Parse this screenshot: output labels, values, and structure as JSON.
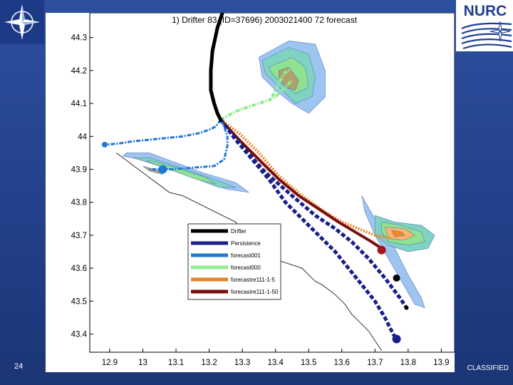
{
  "slide": {
    "number": "24",
    "classification": "CLASSIFIED",
    "nurc_logo_text": "NURC",
    "colors": {
      "background": "#23418a",
      "nurc_blue": "#1f3f8f"
    }
  },
  "chart_data": {
    "type": "line",
    "title": "1) Drifter 83 (ID=37696) 2003021400 72 forecast",
    "xlabel": "",
    "ylabel": "",
    "xlim": [
      12.84,
      13.94
    ],
    "ylim": [
      43.345,
      44.375
    ],
    "xticks": [
      "12.9",
      "13",
      "13.1",
      "13.2",
      "13.3",
      "13.4",
      "13.5",
      "13.6",
      "13.7",
      "13.8",
      "13.9"
    ],
    "yticks": [
      "44.3",
      "44.2",
      "44.1",
      "44",
      "43.9",
      "43.8",
      "43.7",
      "43.6",
      "43.5",
      "43.4"
    ],
    "grid": false,
    "legend_position": "center-right",
    "series": [
      {
        "name": "Drifter",
        "color": "#000000",
        "style": "solid",
        "width": 5,
        "x": [
          13.24,
          13.225,
          13.21,
          13.205,
          13.205,
          13.215,
          13.225,
          13.235
        ],
        "y": [
          44.375,
          44.33,
          44.26,
          44.2,
          44.14,
          44.1,
          44.07,
          44.05
        ]
      },
      {
        "name": "Persistence",
        "color": "#1a1f8a",
        "style": "dash",
        "width": 5,
        "x": [
          13.235,
          13.28,
          13.33,
          13.38,
          13.43,
          13.48,
          13.53,
          13.58,
          13.62,
          13.66,
          13.7,
          13.73,
          13.755,
          13.765
        ],
        "y": [
          44.05,
          43.99,
          43.93,
          43.87,
          43.8,
          43.75,
          43.7,
          43.65,
          43.6,
          43.55,
          43.5,
          43.45,
          43.4,
          43.385
        ]
      },
      {
        "name": "forecast001",
        "color": "#1f78d8",
        "style": "dashdot",
        "width": 3,
        "x": [
          13.235,
          13.22,
          13.2,
          13.17,
          13.12,
          13.07,
          13.02,
          12.97,
          12.925,
          12.885
        ],
        "y": [
          44.05,
          44.03,
          44.02,
          44.01,
          44.0,
          43.995,
          43.99,
          43.985,
          43.978,
          43.975
        ]
      },
      {
        "name": "forecast000",
        "color": "#90ee90",
        "style": "dashdot",
        "width": 4,
        "x": [
          13.235,
          13.26,
          13.29,
          13.32,
          13.35,
          13.38,
          13.4,
          13.42,
          13.45
        ],
        "y": [
          44.05,
          44.065,
          44.08,
          44.09,
          44.1,
          44.11,
          44.12,
          44.14,
          44.17
        ]
      },
      {
        "name": "forecastre111-1-5",
        "color": "#e8821e",
        "style": "dot",
        "width": 4,
        "x": [
          13.235,
          13.29,
          13.35,
          13.41,
          13.48,
          13.55,
          13.6,
          13.65,
          13.7,
          13.75
        ],
        "y": [
          44.05,
          44.01,
          43.95,
          43.88,
          43.82,
          43.77,
          43.74,
          43.72,
          43.7,
          43.69
        ]
      },
      {
        "name": "forecastre111-1-50",
        "color": "#7a0f0f",
        "style": "solid",
        "width": 4,
        "x": [
          13.235,
          13.29,
          13.35,
          13.41,
          13.47,
          13.53,
          13.59,
          13.64,
          13.69,
          13.72
        ],
        "y": [
          44.05,
          43.99,
          43.93,
          43.87,
          43.82,
          43.78,
          43.74,
          43.71,
          43.68,
          43.66
        ]
      },
      {
        "name": "",
        "color": "#1a1f8a",
        "style": "dash",
        "width": 5,
        "x": [
          13.235,
          13.3,
          13.37,
          13.45,
          13.52,
          13.58,
          13.63,
          13.68,
          13.73,
          13.775,
          13.795
        ],
        "y": [
          44.05,
          43.97,
          43.89,
          43.82,
          43.76,
          43.72,
          43.68,
          43.63,
          43.57,
          43.51,
          43.48
        ]
      },
      {
        "name": "",
        "color": "#1f78d8",
        "style": "dashdot",
        "width": 3,
        "x": [
          13.235,
          13.245,
          13.255,
          13.255,
          13.245,
          13.215,
          13.15,
          13.09,
          13.05,
          13.02
        ],
        "y": [
          44.05,
          44.03,
          44.0,
          43.97,
          43.93,
          43.91,
          43.905,
          43.9,
          43.9,
          43.9
        ]
      },
      {
        "name": "",
        "color": "#90ee90",
        "style": "dashdot",
        "width": 4,
        "x": [
          13.39,
          13.4,
          13.41,
          13.42,
          13.43,
          13.44,
          13.45
        ],
        "y": [
          44.12,
          44.14,
          44.16,
          44.18,
          44.195,
          44.2,
          44.205
        ]
      }
    ],
    "markers": [
      {
        "x": 12.885,
        "y": 43.975,
        "r": 4,
        "color": "#1f78d8",
        "edge": ""
      },
      {
        "x": 13.06,
        "y": 43.9,
        "r": 6,
        "color": "#1f78d8",
        "edge": ""
      },
      {
        "x": 13.72,
        "y": 43.655,
        "r": 6,
        "color": "#a3141c",
        "edge": ""
      },
      {
        "x": 13.765,
        "y": 43.385,
        "r": 6,
        "color": "#1a1f8a",
        "edge": ""
      },
      {
        "x": 13.765,
        "y": 43.57,
        "r": 5,
        "color": "#000000",
        "edge": ""
      },
      {
        "x": 13.795,
        "y": 43.48,
        "r": 3,
        "color": "#000000",
        "edge": ""
      },
      {
        "x": 13.235,
        "y": 44.05,
        "r": 3,
        "color": "#000000",
        "edge": ""
      }
    ],
    "contour_blobs": [
      {
        "fill": "#9ec5f0",
        "points": [
          [
            13.35,
            44.24
          ],
          [
            13.44,
            44.29
          ],
          [
            13.52,
            44.28
          ],
          [
            13.55,
            44.2
          ],
          [
            13.55,
            44.12
          ],
          [
            13.5,
            44.07
          ],
          [
            13.45,
            44.1
          ],
          [
            13.4,
            44.14
          ],
          [
            13.36,
            44.18
          ]
        ]
      },
      {
        "fill": "#7fd3c0",
        "points": [
          [
            13.36,
            44.23
          ],
          [
            13.44,
            44.27
          ],
          [
            13.5,
            44.25
          ],
          [
            13.52,
            44.18
          ],
          [
            13.51,
            44.12
          ],
          [
            13.46,
            44.1
          ],
          [
            13.41,
            44.15
          ],
          [
            13.37,
            44.19
          ]
        ]
      },
      {
        "fill": "#8fe28f",
        "points": [
          [
            13.38,
            44.21
          ],
          [
            13.45,
            44.24
          ],
          [
            13.49,
            44.21
          ],
          [
            13.5,
            44.15
          ],
          [
            13.46,
            44.13
          ],
          [
            13.42,
            44.16
          ],
          [
            13.39,
            44.19
          ]
        ]
      },
      {
        "fill": "#b2a06a",
        "points": [
          [
            13.41,
            44.2
          ],
          [
            13.44,
            44.21
          ],
          [
            13.47,
            44.17
          ],
          [
            13.46,
            44.14
          ],
          [
            13.43,
            44.15
          ],
          [
            13.41,
            44.18
          ]
        ]
      },
      {
        "fill": "#9ec5f0",
        "points": [
          [
            12.94,
            43.94
          ],
          [
            13.05,
            43.92
          ],
          [
            13.15,
            43.88
          ],
          [
            13.25,
            43.84
          ],
          [
            13.32,
            43.83
          ],
          [
            13.28,
            43.86
          ],
          [
            13.18,
            43.89
          ],
          [
            13.1,
            43.92
          ],
          [
            13.02,
            43.95
          ],
          [
            12.95,
            43.95
          ]
        ]
      },
      {
        "fill": "#7fd3c0",
        "points": [
          [
            12.97,
            43.935
          ],
          [
            13.05,
            43.91
          ],
          [
            13.15,
            43.875
          ],
          [
            13.23,
            43.845
          ],
          [
            13.28,
            43.845
          ],
          [
            13.2,
            43.875
          ],
          [
            13.1,
            43.91
          ],
          [
            13.02,
            43.935
          ]
        ]
      },
      {
        "fill": "#8fe28f",
        "points": [
          [
            13.01,
            43.925
          ],
          [
            13.08,
            43.9
          ],
          [
            13.16,
            43.87
          ],
          [
            13.22,
            43.855
          ],
          [
            13.19,
            43.875
          ],
          [
            13.1,
            43.905
          ],
          [
            13.03,
            43.925
          ]
        ]
      },
      {
        "fill": "#b2a06a",
        "points": [
          [
            13.0,
            43.91
          ],
          [
            13.05,
            43.895
          ],
          [
            13.06,
            43.885
          ],
          [
            13.02,
            43.895
          ]
        ]
      },
      {
        "fill": "#9ec5f0",
        "points": [
          [
            13.66,
            43.82
          ],
          [
            13.7,
            43.75
          ],
          [
            13.76,
            43.66
          ],
          [
            13.8,
            43.58
          ],
          [
            13.84,
            43.51
          ],
          [
            13.85,
            43.48
          ],
          [
            13.82,
            43.49
          ],
          [
            13.78,
            43.56
          ],
          [
            13.74,
            43.63
          ],
          [
            13.7,
            43.7
          ],
          [
            13.67,
            43.77
          ]
        ]
      },
      {
        "fill": "#7fd3c0",
        "points": [
          [
            13.7,
            43.76
          ],
          [
            13.76,
            43.74
          ],
          [
            13.84,
            43.73
          ],
          [
            13.88,
            43.7
          ],
          [
            13.86,
            43.66
          ],
          [
            13.8,
            43.65
          ],
          [
            13.74,
            43.67
          ],
          [
            13.7,
            43.7
          ]
        ]
      },
      {
        "fill": "#8fe28f",
        "points": [
          [
            13.72,
            43.74
          ],
          [
            13.78,
            43.73
          ],
          [
            13.84,
            43.71
          ],
          [
            13.85,
            43.68
          ],
          [
            13.8,
            43.67
          ],
          [
            13.74,
            43.68
          ],
          [
            13.72,
            43.71
          ]
        ]
      },
      {
        "fill": "#ffb36b",
        "points": [
          [
            13.73,
            43.725
          ],
          [
            13.79,
            43.72
          ],
          [
            13.82,
            43.7
          ],
          [
            13.79,
            43.685
          ],
          [
            13.74,
            43.69
          ]
        ]
      },
      {
        "fill": "#f08a1e",
        "points": [
          [
            13.75,
            43.715
          ],
          [
            13.78,
            43.71
          ],
          [
            13.79,
            43.7
          ],
          [
            13.76,
            43.695
          ]
        ]
      }
    ],
    "coastline": {
      "color": "#000000",
      "x": [
        12.92,
        12.96,
        13.0,
        13.04,
        13.08,
        13.12,
        13.16,
        13.2,
        13.24,
        13.28,
        13.31,
        13.34,
        13.38,
        13.42,
        13.45,
        13.48,
        13.5,
        13.52,
        13.54,
        13.58,
        13.61,
        13.63,
        13.65,
        13.68,
        13.7,
        13.72
      ],
      "y": [
        43.95,
        43.92,
        43.89,
        43.86,
        43.83,
        43.82,
        43.8,
        43.78,
        43.76,
        43.74,
        43.7,
        43.66,
        43.63,
        43.62,
        43.61,
        43.6,
        43.58,
        43.56,
        43.55,
        43.52,
        43.49,
        43.46,
        43.44,
        43.41,
        43.38,
        43.35
      ]
    }
  }
}
